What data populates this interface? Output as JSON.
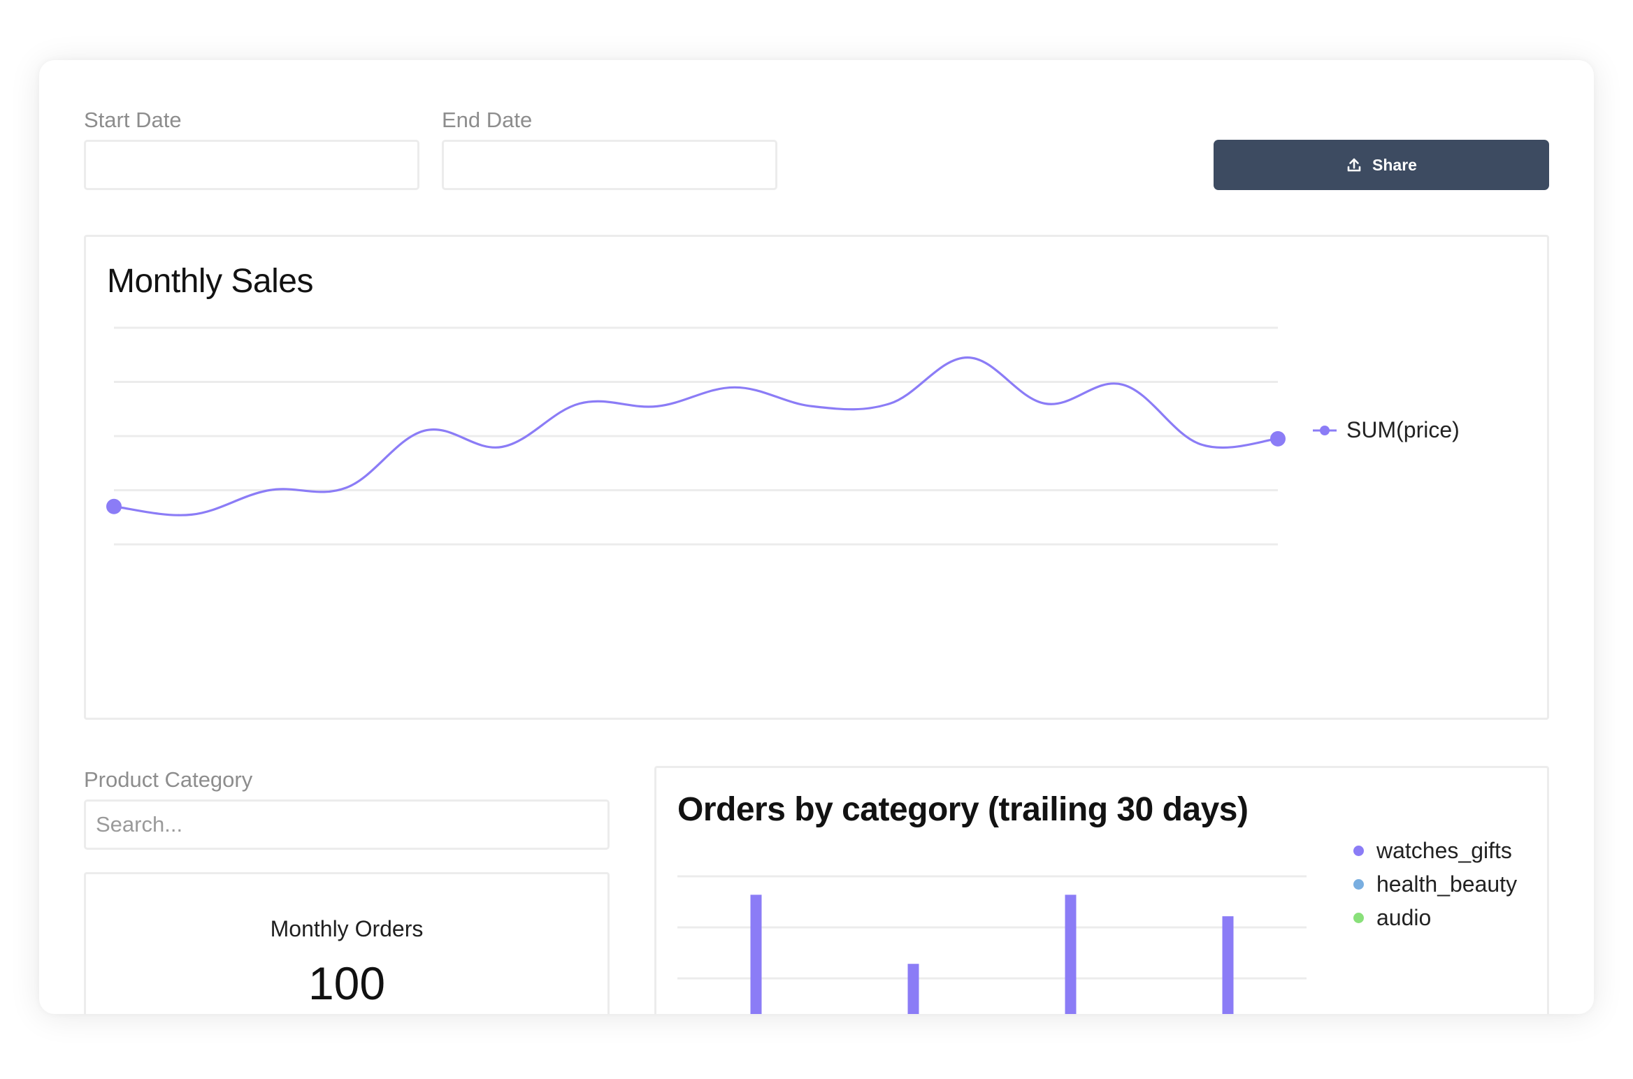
{
  "filters": {
    "start_date": {
      "label": "Start Date",
      "value": ""
    },
    "end_date": {
      "label": "End Date",
      "value": ""
    },
    "share_label": "Share"
  },
  "monthly_sales": {
    "title": "Monthly Sales",
    "legend": "SUM(price)",
    "color": "#8b7cf6"
  },
  "product_category": {
    "label": "Product Category",
    "placeholder": "Search..."
  },
  "metric": {
    "label": "Monthly Orders",
    "value": "100"
  },
  "orders_by_category": {
    "title": "Orders by category (trailing 30 days)",
    "legend": [
      {
        "name": "watches_gifts",
        "color": "#8b7cf6"
      },
      {
        "name": "health_beauty",
        "color": "#79aee0"
      },
      {
        "name": "audio",
        "color": "#89e07a"
      }
    ]
  },
  "chart_data": [
    {
      "type": "line",
      "title": "Monthly Sales",
      "grid": true,
      "legend_placement": "right",
      "series": [
        {
          "name": "SUM(price)",
          "values": [
            1.1,
            0.95,
            1.4,
            1.45,
            2.5,
            2.2,
            3.0,
            2.95,
            3.3,
            2.95,
            3.0,
            3.85,
            3.0,
            3.35,
            2.25,
            2.35
          ]
        }
      ],
      "ylim": [
        0.4,
        4.4
      ]
    },
    {
      "type": "bar",
      "title": "Orders by category (trailing 30 days)",
      "grid": true,
      "legend_placement": "right",
      "series": [
        {
          "name": "watches_gifts",
          "values": [
            12,
            7.5,
            12,
            10.6
          ]
        }
      ],
      "ylim": [
        0,
        13.2
      ]
    }
  ]
}
